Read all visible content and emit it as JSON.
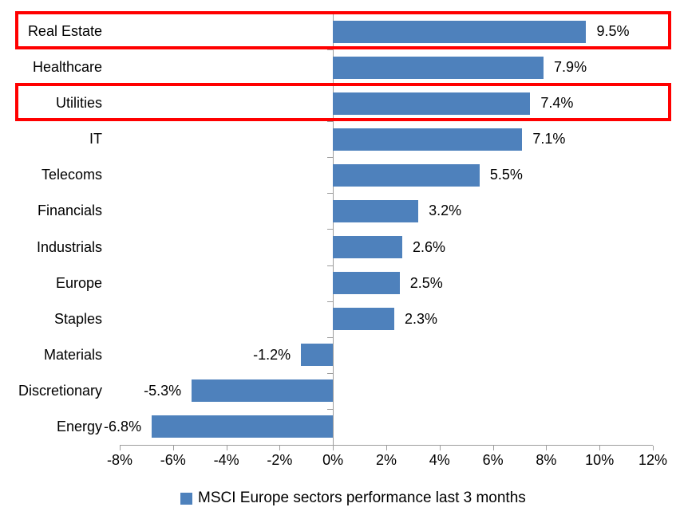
{
  "chart_data": {
    "type": "bar",
    "orientation": "horizontal",
    "title": "",
    "legend": "MSCI Europe sectors performance last 3 months",
    "categories": [
      "Real Estate",
      "Healthcare",
      "Utilities",
      "IT",
      "Telecoms",
      "Financials",
      "Industrials",
      "Europe",
      "Staples",
      "Materials",
      "Discretionary",
      "Energy"
    ],
    "values": [
      9.5,
      7.9,
      7.4,
      7.1,
      5.5,
      3.2,
      2.6,
      2.5,
      2.3,
      -1.2,
      -5.3,
      -6.8
    ],
    "value_labels": [
      "9.5%",
      "7.9%",
      "7.4%",
      "7.1%",
      "5.5%",
      "3.2%",
      "2.6%",
      "2.5%",
      "2.3%",
      "-1.2%",
      "-5.3%",
      "-6.8%"
    ],
    "x_tick_values": [
      -8,
      -6,
      -4,
      -2,
      0,
      2,
      4,
      6,
      8,
      10,
      12
    ],
    "x_tick_labels": [
      "-8%",
      "-6%",
      "-4%",
      "-2%",
      "0%",
      "2%",
      "4%",
      "6%",
      "8%",
      "10%",
      "12%"
    ],
    "xlim": [
      -8,
      12
    ],
    "grid": false,
    "legend_position": "bottom",
    "highlighted_categories": [
      "Real Estate",
      "Utilities"
    ],
    "colors": {
      "bar": "#4e81bc",
      "highlight": "#ff0000",
      "axis": "#9d9d9d",
      "text": "#000000"
    }
  }
}
